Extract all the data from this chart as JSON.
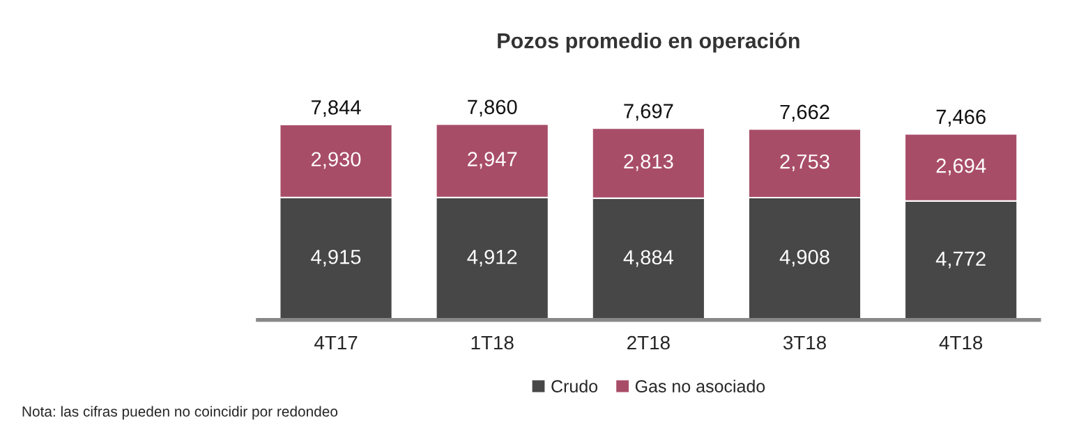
{
  "chart_data": {
    "type": "bar",
    "title": "Pozos promedio en operación",
    "stacked": true,
    "categories": [
      "4T17",
      "1T18",
      "2T18",
      "3T18",
      "4T18"
    ],
    "series": [
      {
        "name": "Crudo",
        "color": "#474747",
        "values": [
          4915,
          4912,
          4884,
          4908,
          4772
        ],
        "value_labels": [
          "4,915",
          "4,912",
          "4,884",
          "4,908",
          "4,772"
        ]
      },
      {
        "name": "Gas no asociado",
        "color": "#a84d68",
        "values": [
          2930,
          2947,
          2813,
          2753,
          2694
        ],
        "value_labels": [
          "2,930",
          "2,947",
          "2,813",
          "2,753",
          "2,694"
        ]
      }
    ],
    "totals": [
      "7,844",
      "7,860",
      "7,697",
      "7,662",
      "7,466"
    ],
    "legend": "bottom",
    "grid": false,
    "annotations": [
      "Nota: las cifras pueden no coincidir por redondeo"
    ]
  }
}
